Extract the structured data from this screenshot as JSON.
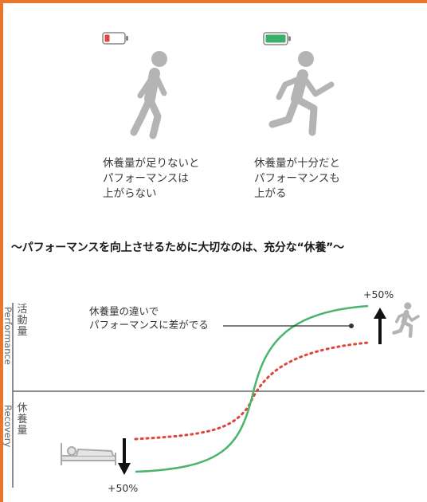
{
  "top": {
    "left_caption": [
      "休養量が足りないと",
      "パフォーマンスは",
      "上がらない"
    ],
    "right_caption": [
      "休養量が十分だと",
      "パフォーマンスも",
      "上がる"
    ],
    "battery_low_color": "#e0443b",
    "battery_full_color": "#3bb068",
    "walker_icon": "walking-person-icon",
    "runner_icon": "running-person-icon"
  },
  "headline": "～パフォーマンスを向上させるために大切なのは、充分な“休養”～",
  "chart": {
    "y_upper": {
      "jp": [
        "活",
        "動",
        "量"
      ],
      "en": "Performance"
    },
    "y_lower": {
      "jp": [
        "休",
        "養",
        "量"
      ],
      "en": "Recovery"
    },
    "annotation": [
      "休養量の違いで",
      "パフォーマンスに差がでる"
    ],
    "top_pct": "+50%",
    "bottom_pct": "+50%",
    "solid_color": "#49b46b",
    "dotted_color": "#e0443b",
    "sleep_icon": "sleeping-person-icon",
    "runner_icon": "running-person-icon"
  }
}
